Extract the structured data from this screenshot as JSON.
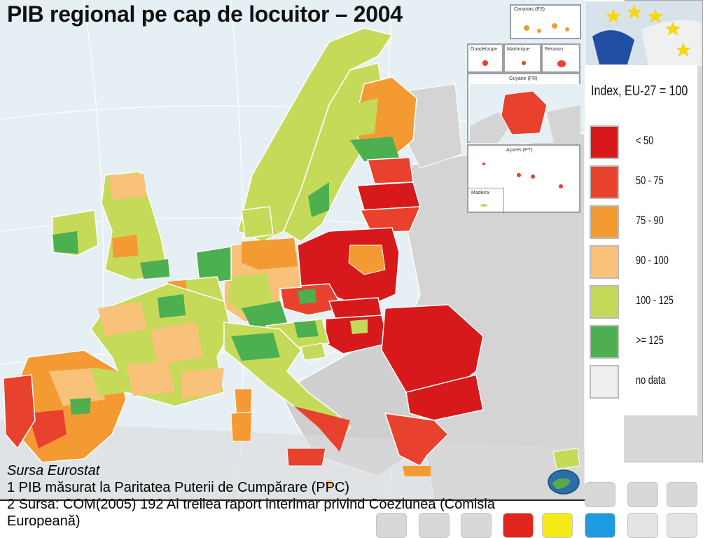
{
  "title": "PIB regional pe cap de locuitor – 2004",
  "legend": {
    "title": "Index, EU-27 = 100",
    "items": [
      {
        "label": "< 50",
        "color": "#d7191c"
      },
      {
        "label": "50 - 75",
        "color": "#e8412d"
      },
      {
        "label": "75 - 90",
        "color": "#f39b32"
      },
      {
        "label": "90 - 100",
        "color": "#f8c27a"
      },
      {
        "label": "100 - 125",
        "color": "#c6da5a"
      },
      {
        "label": ">= 125",
        "color": "#4caf50"
      },
      {
        "label": "no data",
        "color": "#efefef"
      }
    ]
  },
  "insets": {
    "canarias": "Canarias (ES)",
    "guadeloupe": "Guadeloupe",
    "martinique": "Martinique",
    "reunion": "Réunion",
    "guyane": "Guyane (FR)",
    "acores": "Açores (PT)",
    "madeira": "Madeira"
  },
  "notes": {
    "source": "Sursa Eurostat",
    "note1": "1 PIB măsurat la Paritatea Puterii de Cumpărare (PPC)",
    "note2a": "2 Sursa: COM(2005) 192 Al treilea raport interimar privind Coeziunea (Comisia",
    "note2b": "Europeană)"
  },
  "nav_colors": [
    "#d8d8d8",
    "#d8d8d8",
    "#d8d8d8",
    "#e0261c",
    "#f6ea16",
    "#1e9be0",
    "#e4e4e4",
    "#e4e4e4"
  ]
}
